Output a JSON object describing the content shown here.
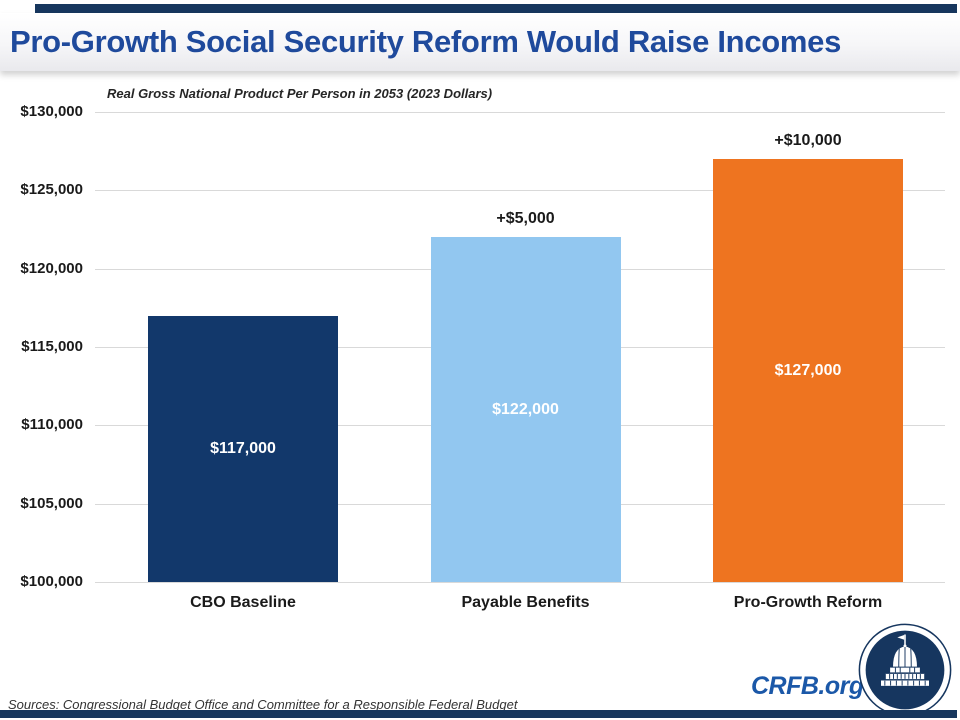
{
  "slide": {
    "title": "Pro-Growth Social Security Reform Would Raise Incomes",
    "subtitle": "Real Gross National Product Per Person in 2053 (2023 Dollars)",
    "sources": "Sources: Congressional Budget Office and Committee for a Responsible Federal Budget",
    "brand": "CRFB.org"
  },
  "colors": {
    "accent_navy": "#17375E",
    "title_blue": "#1F4A9C",
    "gridline": "#D9D9D9",
    "brand_blue": "#1B58A8",
    "bar_label_white": "#FFFFFF",
    "delta_label_black": "#1A1A1A"
  },
  "chart_data": {
    "type": "bar",
    "title": "Real Gross National Product Per Person in 2053 (2023 Dollars)",
    "xlabel": "",
    "ylabel": "",
    "categories": [
      "CBO Baseline",
      "Payable Benefits",
      "Pro-Growth Reform"
    ],
    "values": [
      117000,
      122000,
      127000
    ],
    "bar_value_labels": [
      "$117,000",
      "$122,000",
      "$127,000"
    ],
    "delta_labels": [
      "",
      "+$5,000",
      "+$10,000"
    ],
    "bar_colors": [
      "#12386B",
      "#92C7F0",
      "#EE7420"
    ],
    "ylim": [
      100000,
      130000
    ],
    "ytick_step": 5000,
    "ytick_labels": [
      "$100,000",
      "$105,000",
      "$110,000",
      "$115,000",
      "$120,000",
      "$125,000",
      "$130,000"
    ],
    "grid": true,
    "legend": false
  }
}
